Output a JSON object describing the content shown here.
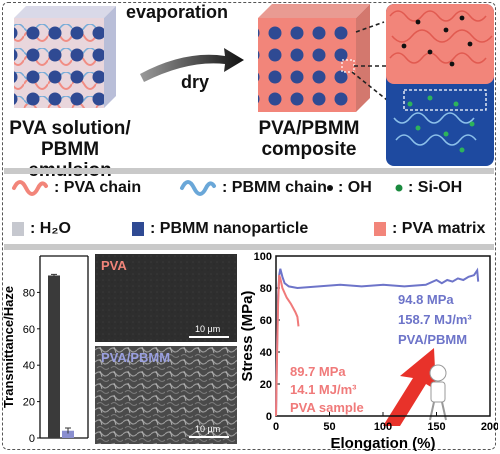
{
  "top": {
    "arrow_label_top": "evaporation",
    "arrow_label_bottom": "dry",
    "left_caption_line1": "PVA solution/",
    "left_caption_line2": "PBMM emulsion",
    "right_caption_line1": "PVA/PBMM",
    "right_caption_line2": "composite"
  },
  "legend": {
    "pva_chain": ": PVA chain",
    "pbmm_chain": ": PBMM chain",
    "oh": ": OH",
    "sioh": ": Si-OH",
    "h2o": ": H₂O",
    "pbmm_np": ": PBMM nanoparticle",
    "pva_matrix": ": PVA matrix"
  },
  "sem": {
    "top_label": "PVA",
    "bottom_label": "PVA/PBMM",
    "scale_top": "10 μm",
    "scale_bottom": "10 μm"
  },
  "colors": {
    "pva": "#f2857a",
    "pbmm": "#2f4a93",
    "pbmm_chain": "#6aa7d8",
    "lavender": "#8a8fd0",
    "bar_gray": "#3a3a3a"
  },
  "chart_data": [
    {
      "type": "bar",
      "ylabel": "Transmittance/Haze",
      "ylim": [
        0,
        100
      ],
      "yticks": [
        "0",
        "20",
        "40",
        "60",
        "80"
      ],
      "values": [
        89.3,
        4.0
      ],
      "errors": [
        0.6,
        1.5
      ]
    },
    {
      "type": "line",
      "xlabel": "Elongation (%)",
      "ylabel": "Stress (MPa)",
      "xlim": [
        0,
        200
      ],
      "ylim": [
        0,
        100
      ],
      "xticks": [
        "0",
        "50",
        "100",
        "150",
        "200"
      ],
      "yticks": [
        "0",
        "20",
        "40",
        "60",
        "80",
        "100"
      ],
      "series": [
        {
          "color": "#6d74c9",
          "x": [
            0,
            1,
            2,
            3,
            4,
            6,
            8,
            12,
            20,
            40,
            60,
            80,
            100,
            120,
            140,
            150,
            155,
            160,
            165,
            170,
            175,
            180,
            185,
            188,
            189
          ],
          "y": [
            0,
            45,
            75,
            88,
            92,
            87,
            83,
            81,
            80,
            81,
            82,
            81,
            82,
            81,
            82,
            85,
            83,
            85,
            84,
            86,
            85,
            87,
            88,
            91,
            84
          ]
        },
        {
          "color": "#f07a7a",
          "x": [
            0,
            1,
            2,
            3,
            4,
            6,
            10,
            14,
            18,
            20,
            21
          ],
          "y": [
            0,
            40,
            70,
            88,
            86,
            80,
            74,
            70,
            65,
            62,
            56
          ]
        }
      ],
      "annotations": {
        "pbmm_mpa": "94.8 MPa",
        "pbmm_mj": "158.7 MJ/m³",
        "pbmm_name": "PVA/PBMM",
        "pva_mpa": "89.7 MPa",
        "pva_mj": "14.1 MJ/m³",
        "pva_name": "PVA sample"
      }
    }
  ]
}
